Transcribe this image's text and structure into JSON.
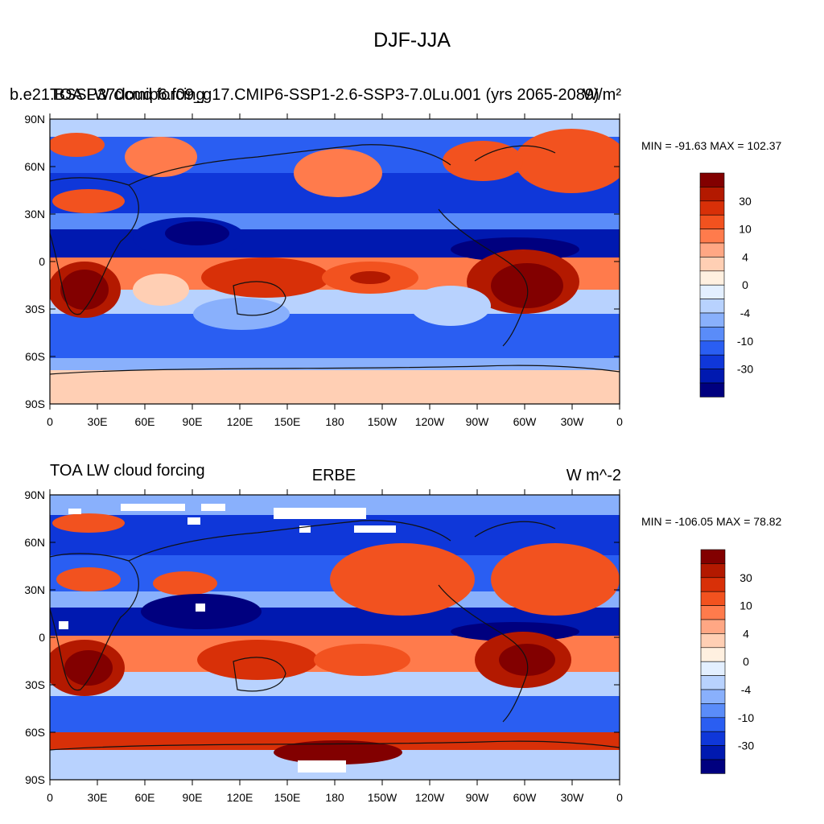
{
  "figure_title": "DJF-JJA",
  "colors": {
    "levels": [
      "#00007f",
      "#0019b0",
      "#0f37d9",
      "#2a5ef2",
      "#5a8cf9",
      "#89b0fc",
      "#b8d2fe",
      "#e3efff",
      "#fff0e0",
      "#ffcfb4",
      "#ffa784",
      "#ff7b4c",
      "#f2521f",
      "#d83008",
      "#b31900",
      "#820000"
    ],
    "coast": "#111111",
    "missing": "#ffffff"
  },
  "colorbar": {
    "labels": [
      "30",
      "10",
      "4",
      "0",
      "-4",
      "-10",
      "-30"
    ]
  },
  "axes": {
    "lat_labels": [
      "90N",
      "60N",
      "30N",
      "0",
      "30S",
      "60S",
      "90S"
    ],
    "lon_labels": [
      "0",
      "30E",
      "60E",
      "90E",
      "120E",
      "150E",
      "180",
      "150W",
      "120W",
      "90W",
      "60W",
      "30W",
      "0"
    ]
  },
  "panels": [
    {
      "left_title": "b.e21.BSSP370cmip6.f09_g17.CMIP6-SSP1-2.6-SSP3-7.0Lu.001 (yrs 2065-2089)",
      "left_title_overlay": "TOA LW cloud forcing",
      "center_title": "",
      "right_title": "W/m²",
      "minmax": "MIN = -91.63 MAX = 102.37"
    },
    {
      "left_title": "TOA LW cloud forcing",
      "left_title_overlay": "",
      "center_title": "ERBE",
      "right_title": "W m^-2",
      "minmax": "MIN = -106.05 MAX =  78.82"
    }
  ]
}
